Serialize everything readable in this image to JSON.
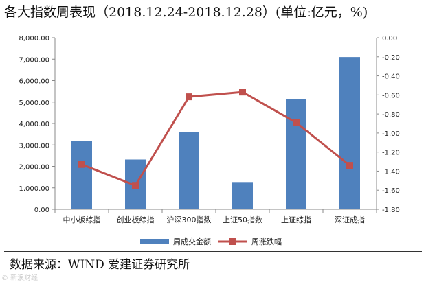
{
  "header": {
    "title": "各大指数周表现（2018.12.24-2018.12.28）(单位:亿元，%)"
  },
  "footer": {
    "source": "数据来源：WIND 爱建证券研究所",
    "watermark": "© 新浪财经"
  },
  "chart_data": {
    "type": "bar",
    "categories": [
      "中小板综指",
      "创业板综指",
      "沪深300指数",
      "上证50指数",
      "上证综指",
      "深证成指"
    ],
    "series": [
      {
        "name": "周成交金额",
        "type": "bar",
        "axis": "left",
        "color": "#4f81bd",
        "values": [
          3200,
          2320,
          3610,
          1270,
          5120,
          7100
        ]
      },
      {
        "name": "周涨跌幅",
        "type": "line",
        "axis": "right",
        "color": "#c0504d",
        "values": [
          -1.33,
          -1.55,
          -0.62,
          -0.57,
          -0.89,
          -1.34
        ]
      }
    ],
    "left_axis": {
      "min": 0,
      "max": 8000,
      "step": 1000,
      "ticks": [
        "0.00",
        "1,000.00",
        "2,000.00",
        "3,000.00",
        "4,000.00",
        "5,000.00",
        "6,000.00",
        "7,000.00",
        "8,000.00"
      ]
    },
    "right_axis": {
      "min": -1.8,
      "max": 0,
      "step": 0.2,
      "ticks": [
        "0.00",
        "-0.20",
        "-0.40",
        "-0.60",
        "-0.80",
        "-1.00",
        "-1.20",
        "-1.40",
        "-1.60",
        "-1.80"
      ]
    },
    "legend_position": "bottom",
    "grid": false
  }
}
